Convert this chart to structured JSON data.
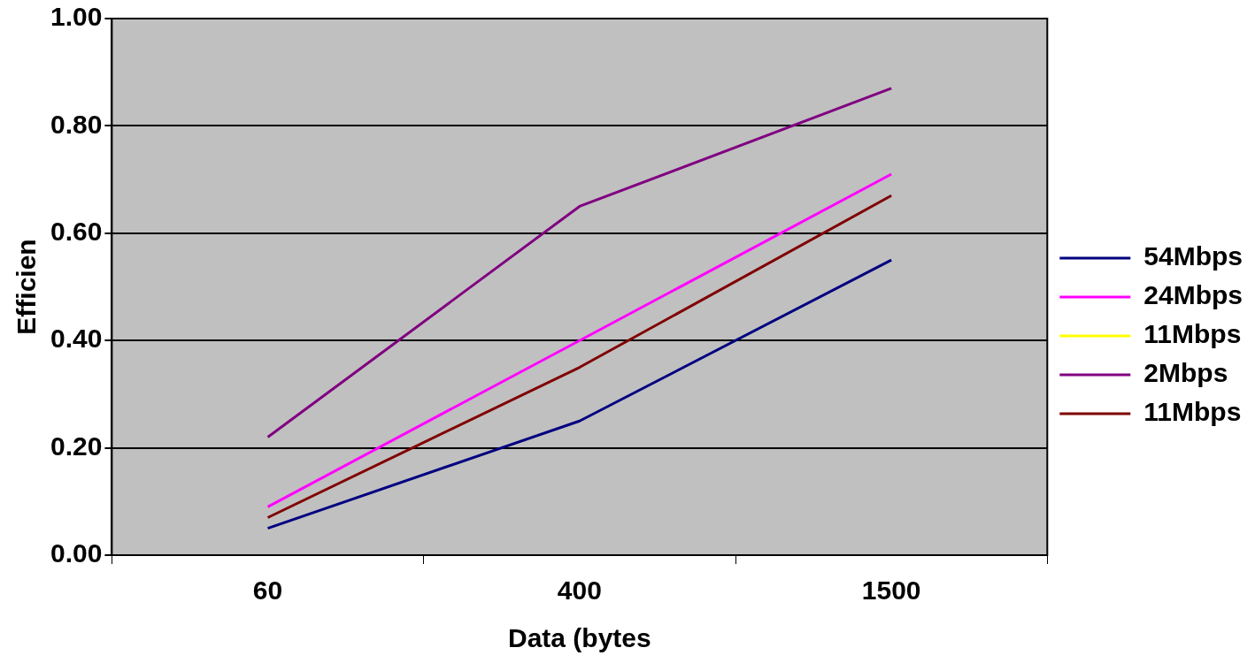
{
  "chart_data": {
    "type": "line",
    "xlabel": "Data (bytes",
    "ylabel": "Efficien",
    "categories": [
      "60",
      "400",
      "1500"
    ],
    "series": [
      {
        "name": "54Mbps",
        "color": "#000080",
        "values": [
          0.05,
          0.25,
          0.55
        ]
      },
      {
        "name": "24Mbps",
        "color": "#ff00ff",
        "values": [
          0.09,
          0.4,
          0.71
        ]
      },
      {
        "name": "11Mbps",
        "color": "#ffff00",
        "values": [
          null,
          null,
          null
        ]
      },
      {
        "name": "2Mbps",
        "color": "#800080",
        "values": [
          0.22,
          0.65,
          0.87
        ]
      },
      {
        "name": "11Mbps",
        "color": "#800000",
        "values": [
          0.07,
          0.35,
          0.67
        ]
      }
    ],
    "ylim": [
      0,
      1
    ],
    "yticks": [
      {
        "value": 0,
        "label": "0.00"
      },
      {
        "value": 0.2,
        "label": "0.20"
      },
      {
        "value": 0.4,
        "label": "0.40"
      },
      {
        "value": 0.6,
        "label": "0.60"
      },
      {
        "value": 0.8,
        "label": "0.80"
      },
      {
        "value": 1,
        "label": "1.00"
      }
    ],
    "grid": "y",
    "legend": "right",
    "marker": "none",
    "line_style": "solid"
  }
}
